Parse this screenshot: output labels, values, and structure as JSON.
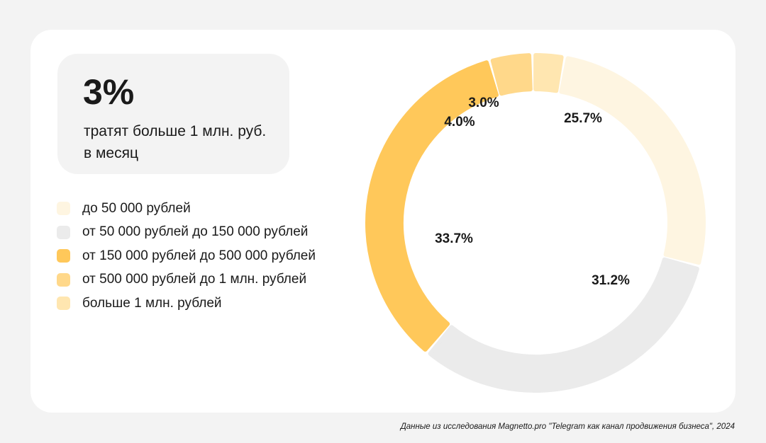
{
  "stat": {
    "value": "3%",
    "caption": "тратят больше 1 млн. руб. в месяц"
  },
  "legend": [
    {
      "label": "до 50 000 рублей",
      "color": "#fef5e1"
    },
    {
      "label": "от 50 000 рублей до 150 000 рублей",
      "color": "#ebebeb"
    },
    {
      "label": "от 150 000 рублей до 500 000 рублей",
      "color": "#ffc85a"
    },
    {
      "label": "от 500 000 рублей до 1 млн. рублей",
      "color": "#ffd88a"
    },
    {
      "label": "больше 1 млн. рублей",
      "color": "#ffe6b0"
    }
  ],
  "chart_data": {
    "type": "pie",
    "style": "donut",
    "categories": [
      "до 50 000 рублей",
      "от 50 000 рублей до 150 000 рублей",
      "от 150 000 рублей до 500 000 рублей",
      "от 500 000 рублей до 1 млн. рублей",
      "больше 1 млн. рублей"
    ],
    "values": [
      25.7,
      31.2,
      33.7,
      4.0,
      3.0
    ],
    "labels": [
      "25.7%",
      "31.2%",
      "33.7%",
      "4.0%",
      "3.0%"
    ],
    "colors": [
      "#fef5e1",
      "#ebebeb",
      "#ffc85a",
      "#ffd88a",
      "#ffe6b0"
    ],
    "legend_position": "left"
  },
  "source": "Данные из исследования Magnetto.pro \"Telegram как канал продвижения бизнеса\", 2024"
}
